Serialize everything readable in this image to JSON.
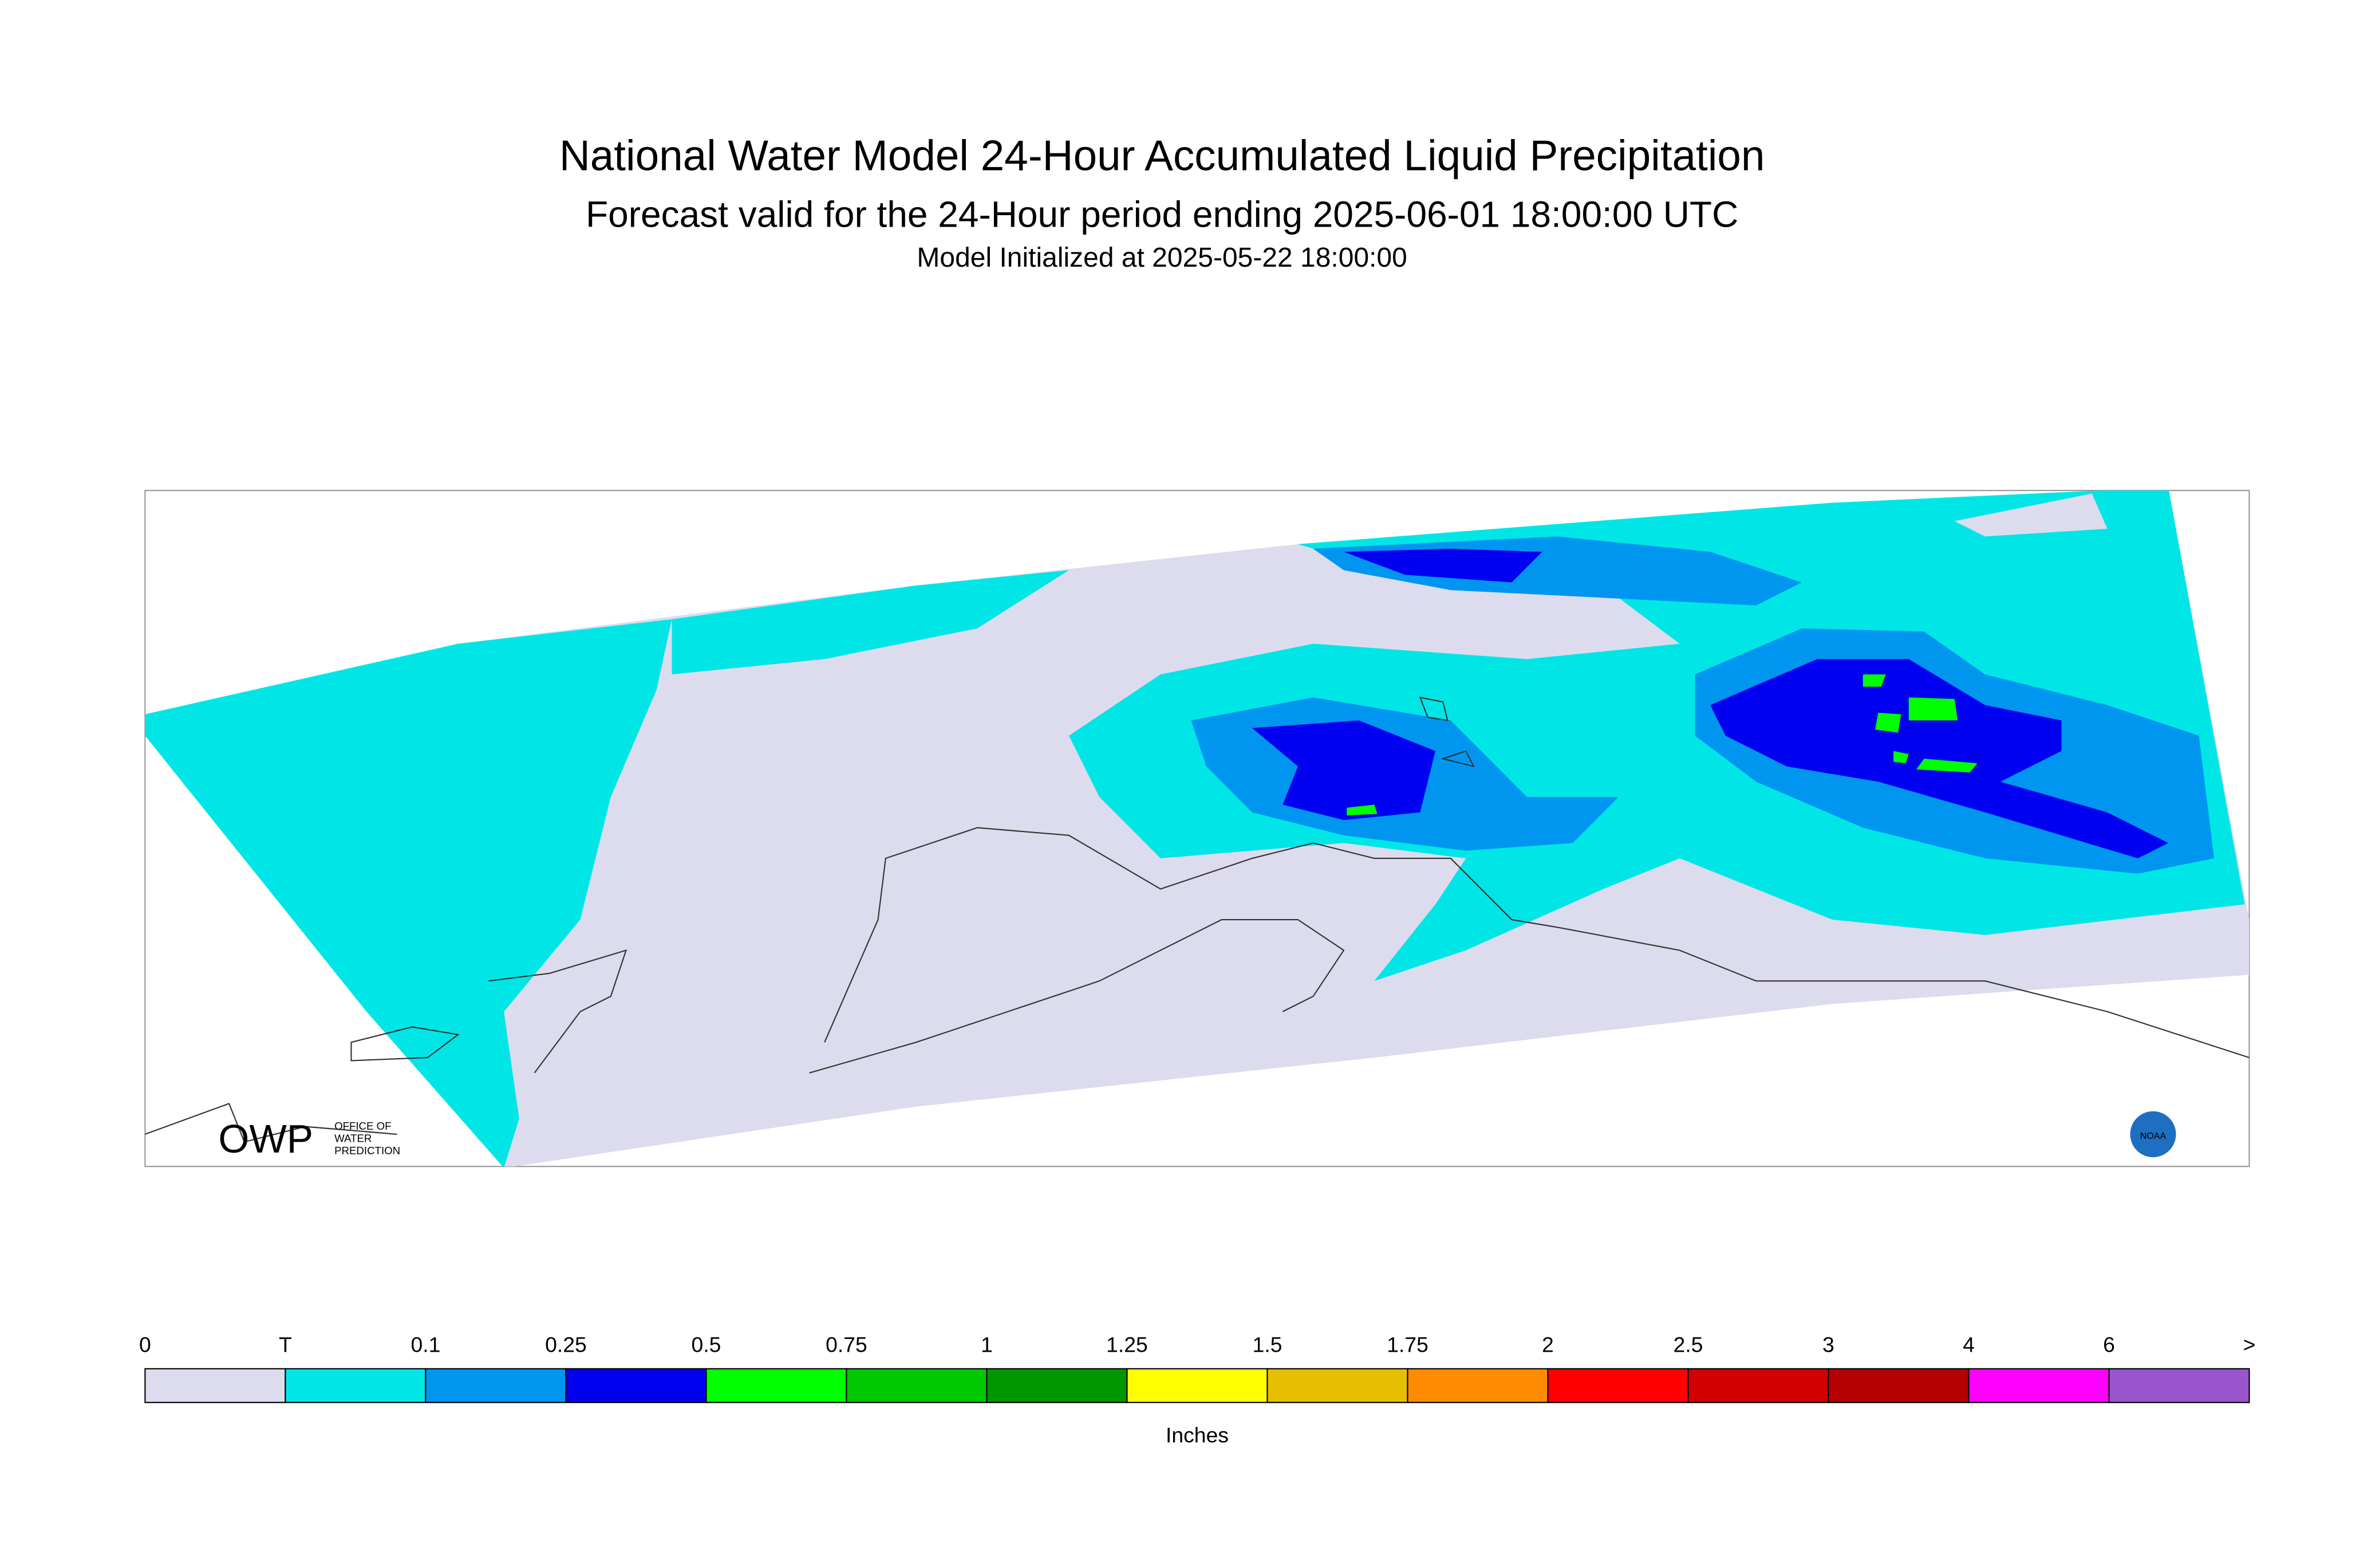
{
  "header": {
    "title": "National Water Model 24-Hour Accumulated Liquid Precipitation",
    "subtitle": "Forecast valid for the 24-Hour period ending 2025-06-01 18:00:00 UTC",
    "initialized": "Model Initialized at 2025-05-22 18:00:00"
  },
  "legend": {
    "labels": [
      "0",
      "T",
      "0.1",
      "0.25",
      "0.5",
      "0.75",
      "1",
      "1.25",
      "1.5",
      "1.75",
      "2",
      "2.5",
      "3",
      "4",
      "6",
      ">"
    ],
    "colors": [
      "#dcdcee",
      "#00e6e6",
      "#0096f0",
      "#0000f0",
      "#00ff00",
      "#00c800",
      "#009600",
      "#ffff00",
      "#e6c000",
      "#ff8c00",
      "#ff0000",
      "#d20000",
      "#b40000",
      "#ff00ff",
      "#9955cc"
    ],
    "unit": "Inches"
  },
  "logos": {
    "owp": "OWP",
    "owp_line1": "OFFICE OF",
    "owp_line2": "WATER",
    "owp_line3": "PREDICTION",
    "noaa": "NOAA"
  }
}
